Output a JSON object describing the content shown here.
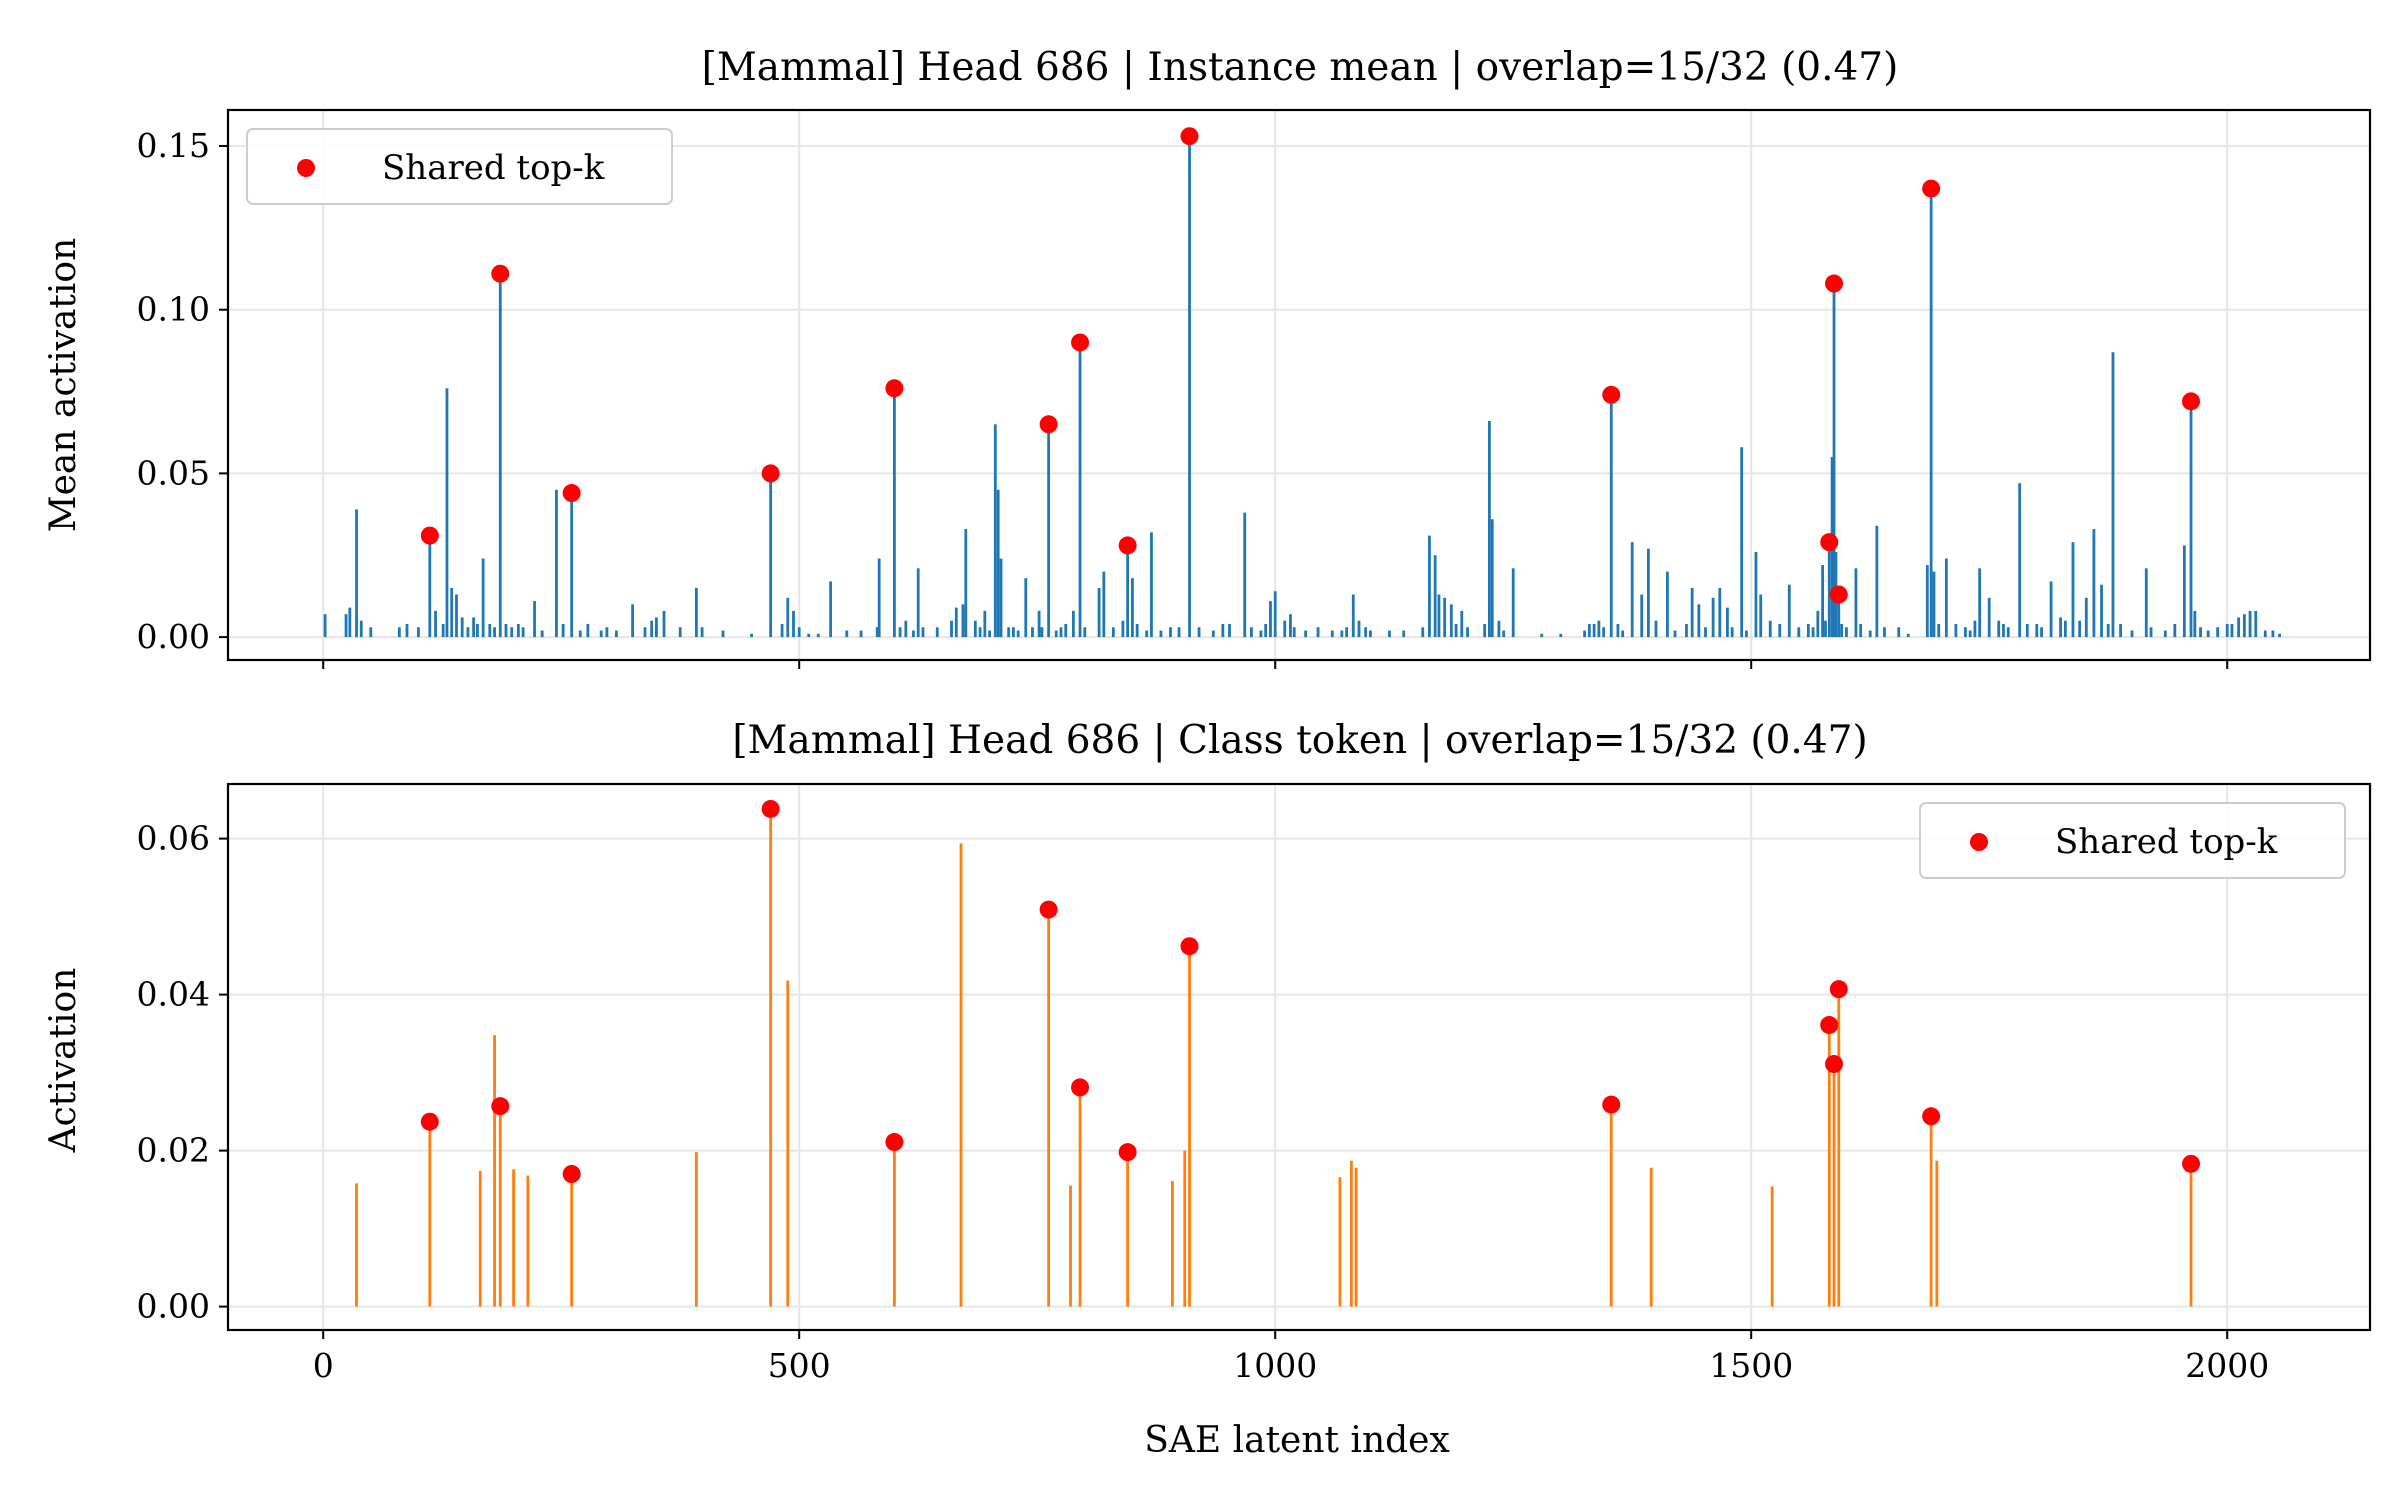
{
  "chart_data": [
    {
      "type": "bar",
      "title": "[Mammal] Head 686 | Instance mean | overlap=15/32 (0.47)",
      "xlabel": "",
      "ylabel": "Mean activation",
      "xlim": [
        -100,
        2150
      ],
      "ylim": [
        -0.007,
        0.161
      ],
      "xticks": [
        0,
        500,
        1000,
        1500,
        2000
      ],
      "xtick_labels": [
        "",
        "",
        "",
        "",
        ""
      ],
      "yticks": [
        0.0,
        0.05,
        0.1,
        0.15
      ],
      "ytick_labels": [
        "0.00",
        "0.05",
        "0.10",
        "0.15"
      ],
      "grid": true,
      "bar_color": "#1f77b4",
      "marker_color": "#ff0000",
      "legend": {
        "label": "Shared top-k",
        "position": "upper-left"
      },
      "bars": [
        [
          2,
          0.007
        ],
        [
          24,
          0.007
        ],
        [
          28,
          0.009
        ],
        [
          35,
          0.039
        ],
        [
          40,
          0.005
        ],
        [
          50,
          0.003
        ],
        [
          80,
          0.003
        ],
        [
          88,
          0.004
        ],
        [
          100,
          0.003
        ],
        [
          112,
          0.031
        ],
        [
          118,
          0.008
        ],
        [
          126,
          0.004
        ],
        [
          130,
          0.076
        ],
        [
          135,
          0.015
        ],
        [
          140,
          0.013
        ],
        [
          146,
          0.006
        ],
        [
          152,
          0.003
        ],
        [
          158,
          0.006
        ],
        [
          162,
          0.004
        ],
        [
          168,
          0.024
        ],
        [
          175,
          0.004
        ],
        [
          180,
          0.003
        ],
        [
          186,
          0.111
        ],
        [
          192,
          0.004
        ],
        [
          198,
          0.003
        ],
        [
          205,
          0.004
        ],
        [
          210,
          0.003
        ],
        [
          222,
          0.011
        ],
        [
          230,
          0.002
        ],
        [
          245,
          0.045
        ],
        [
          252,
          0.004
        ],
        [
          261,
          0.044
        ],
        [
          270,
          0.002
        ],
        [
          278,
          0.004
        ],
        [
          292,
          0.002
        ],
        [
          298,
          0.003
        ],
        [
          308,
          0.002
        ],
        [
          325,
          0.01
        ],
        [
          338,
          0.003
        ],
        [
          345,
          0.005
        ],
        [
          350,
          0.006
        ],
        [
          358,
          0.008
        ],
        [
          375,
          0.003
        ],
        [
          392,
          0.015
        ],
        [
          398,
          0.003
        ],
        [
          420,
          0.002
        ],
        [
          450,
          0.001
        ],
        [
          470,
          0.05
        ],
        [
          482,
          0.004
        ],
        [
          488,
          0.012
        ],
        [
          494,
          0.008
        ],
        [
          500,
          0.003
        ],
        [
          510,
          0.001
        ],
        [
          520,
          0.001
        ],
        [
          533,
          0.017
        ],
        [
          550,
          0.002
        ],
        [
          565,
          0.002
        ],
        [
          582,
          0.003
        ],
        [
          584,
          0.024
        ],
        [
          600,
          0.076
        ],
        [
          606,
          0.003
        ],
        [
          612,
          0.005
        ],
        [
          620,
          0.002
        ],
        [
          625,
          0.021
        ],
        [
          630,
          0.003
        ],
        [
          645,
          0.003
        ],
        [
          660,
          0.005
        ],
        [
          665,
          0.009
        ],
        [
          672,
          0.01
        ],
        [
          675,
          0.033
        ],
        [
          685,
          0.005
        ],
        [
          690,
          0.003
        ],
        [
          695,
          0.008
        ],
        [
          700,
          0.002
        ],
        [
          706,
          0.065
        ],
        [
          709,
          0.045
        ],
        [
          712,
          0.024
        ],
        [
          720,
          0.003
        ],
        [
          725,
          0.003
        ],
        [
          730,
          0.002
        ],
        [
          738,
          0.018
        ],
        [
          745,
          0.003
        ],
        [
          752,
          0.008
        ],
        [
          755,
          0.003
        ],
        [
          762,
          0.065
        ],
        [
          770,
          0.002
        ],
        [
          775,
          0.003
        ],
        [
          780,
          0.004
        ],
        [
          788,
          0.008
        ],
        [
          795,
          0.09
        ],
        [
          800,
          0.003
        ],
        [
          815,
          0.015
        ],
        [
          820,
          0.02
        ],
        [
          830,
          0.003
        ],
        [
          840,
          0.005
        ],
        [
          845,
          0.028
        ],
        [
          850,
          0.018
        ],
        [
          855,
          0.004
        ],
        [
          865,
          0.002
        ],
        [
          870,
          0.032
        ],
        [
          880,
          0.002
        ],
        [
          890,
          0.003
        ],
        [
          899,
          0.003
        ],
        [
          910,
          0.153
        ],
        [
          920,
          0.003
        ],
        [
          935,
          0.002
        ],
        [
          945,
          0.004
        ],
        [
          952,
          0.004
        ],
        [
          968,
          0.038
        ],
        [
          975,
          0.003
        ],
        [
          985,
          0.002
        ],
        [
          990,
          0.004
        ],
        [
          995,
          0.011
        ],
        [
          1000,
          0.014
        ],
        [
          1010,
          0.005
        ],
        [
          1016,
          0.007
        ],
        [
          1020,
          0.003
        ],
        [
          1032,
          0.002
        ],
        [
          1045,
          0.003
        ],
        [
          1060,
          0.002
        ],
        [
          1070,
          0.002
        ],
        [
          1075,
          0.003
        ],
        [
          1082,
          0.013
        ],
        [
          1088,
          0.005
        ],
        [
          1095,
          0.003
        ],
        [
          1100,
          0.002
        ],
        [
          1120,
          0.002
        ],
        [
          1135,
          0.002
        ],
        [
          1155,
          0.003
        ],
        [
          1162,
          0.031
        ],
        [
          1168,
          0.025
        ],
        [
          1172,
          0.013
        ],
        [
          1178,
          0.012
        ],
        [
          1185,
          0.01
        ],
        [
          1190,
          0.004
        ],
        [
          1196,
          0.008
        ],
        [
          1202,
          0.003
        ],
        [
          1220,
          0.004
        ],
        [
          1225,
          0.066
        ],
        [
          1228,
          0.036
        ],
        [
          1235,
          0.005
        ],
        [
          1240,
          0.002
        ],
        [
          1250,
          0.021
        ],
        [
          1280,
          0.001
        ],
        [
          1300,
          0.001
        ],
        [
          1325,
          0.002
        ],
        [
          1330,
          0.004
        ],
        [
          1335,
          0.004
        ],
        [
          1340,
          0.005
        ],
        [
          1345,
          0.003
        ],
        [
          1353,
          0.074
        ],
        [
          1360,
          0.004
        ],
        [
          1365,
          0.002
        ],
        [
          1375,
          0.029
        ],
        [
          1385,
          0.013
        ],
        [
          1392,
          0.027
        ],
        [
          1400,
          0.005
        ],
        [
          1412,
          0.02
        ],
        [
          1420,
          0.002
        ],
        [
          1432,
          0.004
        ],
        [
          1438,
          0.015
        ],
        [
          1445,
          0.01
        ],
        [
          1452,
          0.003
        ],
        [
          1460,
          0.012
        ],
        [
          1467,
          0.015
        ],
        [
          1475,
          0.009
        ],
        [
          1480,
          0.003
        ],
        [
          1490,
          0.058
        ],
        [
          1495,
          0.002
        ],
        [
          1505,
          0.026
        ],
        [
          1510,
          0.013
        ],
        [
          1520,
          0.005
        ],
        [
          1530,
          0.004
        ],
        [
          1540,
          0.016
        ],
        [
          1550,
          0.003
        ],
        [
          1560,
          0.004
        ],
        [
          1565,
          0.003
        ],
        [
          1570,
          0.008
        ],
        [
          1575,
          0.022
        ],
        [
          1578,
          0.005
        ],
        [
          1582,
          0.029
        ],
        [
          1585,
          0.055
        ],
        [
          1587,
          0.108
        ],
        [
          1589,
          0.026
        ],
        [
          1592,
          0.013
        ],
        [
          1595,
          0.004
        ],
        [
          1600,
          0.003
        ],
        [
          1610,
          0.021
        ],
        [
          1615,
          0.004
        ],
        [
          1625,
          0.002
        ],
        [
          1632,
          0.034
        ],
        [
          1640,
          0.003
        ],
        [
          1655,
          0.003
        ],
        [
          1665,
          0.001
        ],
        [
          1685,
          0.022
        ],
        [
          1689,
          0.137
        ],
        [
          1692,
          0.02
        ],
        [
          1697,
          0.004
        ],
        [
          1705,
          0.024
        ],
        [
          1715,
          0.004
        ],
        [
          1725,
          0.003
        ],
        [
          1730,
          0.002
        ],
        [
          1735,
          0.005
        ],
        [
          1740,
          0.021
        ],
        [
          1750,
          0.012
        ],
        [
          1760,
          0.005
        ],
        [
          1765,
          0.004
        ],
        [
          1770,
          0.003
        ],
        [
          1782,
          0.047
        ],
        [
          1790,
          0.004
        ],
        [
          1800,
          0.004
        ],
        [
          1805,
          0.003
        ],
        [
          1815,
          0.017
        ],
        [
          1825,
          0.006
        ],
        [
          1830,
          0.005
        ],
        [
          1838,
          0.029
        ],
        [
          1845,
          0.005
        ],
        [
          1852,
          0.012
        ],
        [
          1860,
          0.033
        ],
        [
          1868,
          0.016
        ],
        [
          1875,
          0.004
        ],
        [
          1880,
          0.087
        ],
        [
          1888,
          0.004
        ],
        [
          1900,
          0.002
        ],
        [
          1915,
          0.021
        ],
        [
          1920,
          0.003
        ],
        [
          1935,
          0.002
        ],
        [
          1945,
          0.004
        ],
        [
          1955,
          0.028
        ],
        [
          1962,
          0.072
        ],
        [
          1966,
          0.008
        ],
        [
          1972,
          0.003
        ],
        [
          1980,
          0.002
        ],
        [
          1990,
          0.003
        ],
        [
          2000,
          0.004
        ],
        [
          2005,
          0.004
        ],
        [
          2012,
          0.006
        ],
        [
          2018,
          0.007
        ],
        [
          2024,
          0.008
        ],
        [
          2030,
          0.008
        ],
        [
          2040,
          0.002
        ],
        [
          2048,
          0.002
        ],
        [
          2055,
          0.001
        ]
      ],
      "shared_points": [
        [
          112,
          0.031
        ],
        [
          186,
          0.111
        ],
        [
          261,
          0.044
        ],
        [
          470,
          0.05
        ],
        [
          600,
          0.076
        ],
        [
          762,
          0.065
        ],
        [
          795,
          0.09
        ],
        [
          845,
          0.028
        ],
        [
          910,
          0.153
        ],
        [
          1353,
          0.074
        ],
        [
          1582,
          0.029
        ],
        [
          1587,
          0.108
        ],
        [
          1592,
          0.013
        ],
        [
          1689,
          0.137
        ],
        [
          1962,
          0.072
        ]
      ]
    },
    {
      "type": "bar",
      "title": "[Mammal] Head 686 | Class token | overlap=15/32 (0.47)",
      "xlabel": "SAE latent index",
      "ylabel": "Activation",
      "xlim": [
        -100,
        2150
      ],
      "ylim": [
        -0.003,
        0.067
      ],
      "xticks": [
        0,
        500,
        1000,
        1500,
        2000
      ],
      "xtick_labels": [
        "0",
        "500",
        "1000",
        "1500",
        "2000"
      ],
      "yticks": [
        0.0,
        0.02,
        0.04,
        0.06
      ],
      "ytick_labels": [
        "0.00",
        "0.02",
        "0.04",
        "0.06"
      ],
      "grid": true,
      "bar_color": "#ff7f0e",
      "marker_color": "#ff0000",
      "legend": {
        "label": "Shared top-k",
        "position": "upper-right"
      },
      "bars": [
        [
          35,
          0.0158
        ],
        [
          112,
          0.0237
        ],
        [
          165,
          0.0174
        ],
        [
          180,
          0.0348
        ],
        [
          186,
          0.0257
        ],
        [
          200,
          0.0176
        ],
        [
          215,
          0.0168
        ],
        [
          261,
          0.017
        ],
        [
          392,
          0.0198
        ],
        [
          470,
          0.0638
        ],
        [
          488,
          0.0418
        ],
        [
          600,
          0.0211
        ],
        [
          670,
          0.0594
        ],
        [
          762,
          0.0509
        ],
        [
          785,
          0.0155
        ],
        [
          795,
          0.0281
        ],
        [
          845,
          0.0198
        ],
        [
          892,
          0.0161
        ],
        [
          905,
          0.02
        ],
        [
          910,
          0.0462
        ],
        [
          1068,
          0.0166
        ],
        [
          1080,
          0.0187
        ],
        [
          1085,
          0.0178
        ],
        [
          1353,
          0.0259
        ],
        [
          1395,
          0.0178
        ],
        [
          1522,
          0.0154
        ],
        [
          1582,
          0.0361
        ],
        [
          1587,
          0.0311
        ],
        [
          1592,
          0.0407
        ],
        [
          1689,
          0.0244
        ],
        [
          1695,
          0.0187
        ],
        [
          1962,
          0.0183
        ]
      ],
      "shared_points": [
        [
          112,
          0.0237
        ],
        [
          186,
          0.0257
        ],
        [
          261,
          0.017
        ],
        [
          470,
          0.0638
        ],
        [
          600,
          0.0211
        ],
        [
          762,
          0.0509
        ],
        [
          795,
          0.0281
        ],
        [
          845,
          0.0198
        ],
        [
          910,
          0.0462
        ],
        [
          1353,
          0.0259
        ],
        [
          1582,
          0.0361
        ],
        [
          1587,
          0.0311
        ],
        [
          1592,
          0.0407
        ],
        [
          1689,
          0.0244
        ],
        [
          1962,
          0.0183
        ]
      ]
    }
  ]
}
